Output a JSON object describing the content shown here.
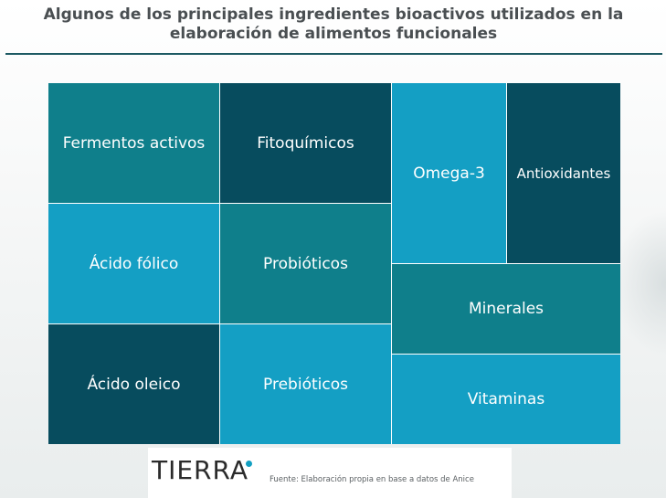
{
  "title": "Algunos de los principales ingredientes bioactivos utilizados en la elaboración de alimentos funcionales",
  "colors": {
    "teal": "#0f7f8b",
    "dark": "#074c5e",
    "light": "#149fc4",
    "rule": "#1d5a63"
  },
  "tiles": [
    {
      "id": "fermentos",
      "label": "Fermentos activos",
      "color": "#0f7f8b"
    },
    {
      "id": "fitoquimicos",
      "label": "Fitoquímicos",
      "color": "#074c5e"
    },
    {
      "id": "omega3",
      "label": "Omega-3",
      "color": "#149fc4"
    },
    {
      "id": "antioxidantes",
      "label": "Antioxidantes",
      "color": "#074c5e"
    },
    {
      "id": "acido-folico",
      "label": "Ácido fólico",
      "color": "#149fc4"
    },
    {
      "id": "probioticos",
      "label": "Probióticos",
      "color": "#0f7f8b"
    },
    {
      "id": "minerales",
      "label": "Minerales",
      "color": "#0f7f8b"
    },
    {
      "id": "acido-oleico",
      "label": "Ácido oleico",
      "color": "#074c5e"
    },
    {
      "id": "prebioticos",
      "label": "Prebióticos",
      "color": "#149fc4"
    },
    {
      "id": "vitaminas",
      "label": "Vitaminas",
      "color": "#149fc4"
    }
  ],
  "footer": {
    "logo": "TIERRA",
    "source": "Fuente: Elaboración propia en base a datos de Anice"
  }
}
